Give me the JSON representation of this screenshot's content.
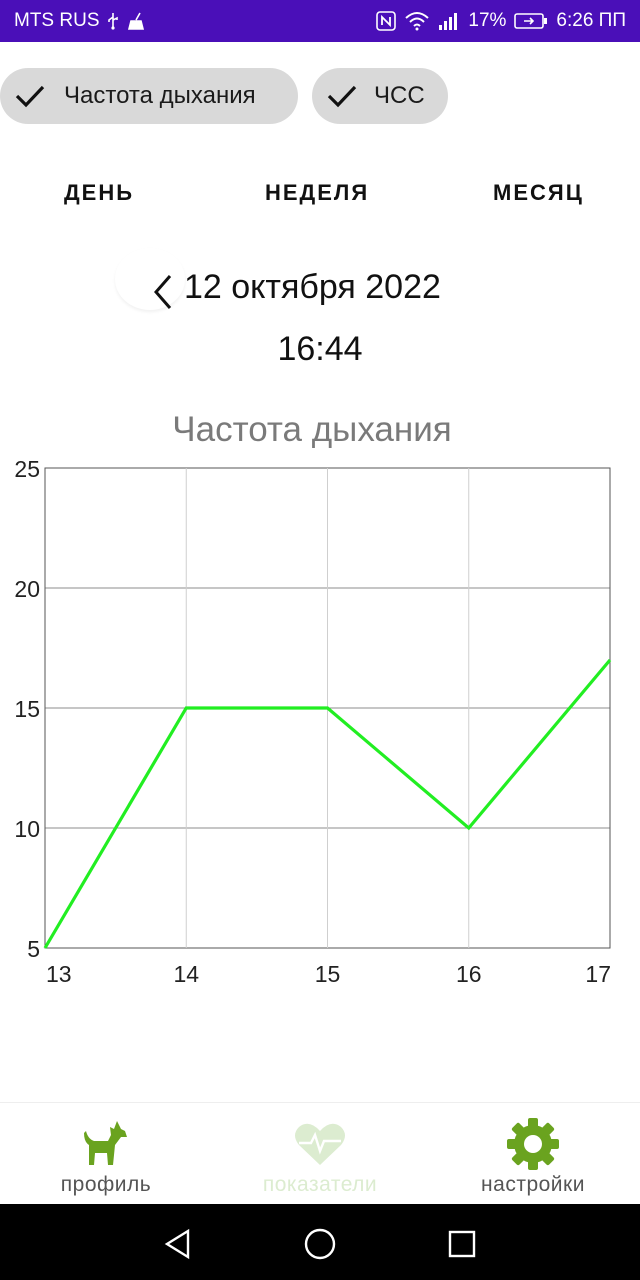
{
  "status_bar": {
    "carrier": "MTS RUS",
    "battery": "17%",
    "time": "6:26 ПП",
    "icons": [
      "usb-icon",
      "cleaner-icon",
      "nfc-icon",
      "wifi-icon",
      "signal-icon",
      "battery-icon"
    ]
  },
  "filters": [
    {
      "label": "Частота дыхания",
      "checked": true
    },
    {
      "label": "ЧСС",
      "checked": true
    }
  ],
  "periods": {
    "day": "ДЕНЬ",
    "week": "НЕДЕЛЯ",
    "month": "МЕСЯЦ"
  },
  "date_nav": {
    "date": "12 октября 2022",
    "time": "16:44"
  },
  "chart_data": {
    "type": "line",
    "title": "Частота дыхания",
    "x": [
      13,
      14,
      15,
      16,
      17
    ],
    "x_tick_labels": [
      "13",
      "14",
      "15",
      "16",
      "17"
    ],
    "series": [
      {
        "values": [
          5,
          15,
          15,
          10,
          17
        ],
        "color": "#22ee22"
      }
    ],
    "ylim": [
      5,
      25
    ],
    "y_ticks": [
      5,
      10,
      15,
      20,
      25
    ],
    "y_tick_labels": [
      "5",
      "10",
      "15",
      "20",
      "25"
    ],
    "xlim": [
      13,
      17
    ],
    "grid": true
  },
  "bottom_nav": {
    "items": [
      {
        "label": "профиль",
        "icon": "dog-icon",
        "color": "#6aa31f",
        "active": true
      },
      {
        "label": "показатели",
        "icon": "heart-pulse-icon",
        "color": "#dcecd0",
        "active": false
      },
      {
        "label": "настройки",
        "icon": "gear-icon",
        "color": "#6aa31f",
        "active": true
      }
    ]
  },
  "system_nav": {
    "icons": [
      "back-triangle-icon",
      "home-circle-icon",
      "recents-square-icon"
    ]
  },
  "colors": {
    "status_bar": "#4a0fb8",
    "accent_green": "#6aa31f",
    "chip_bg": "#d9d9d9"
  }
}
